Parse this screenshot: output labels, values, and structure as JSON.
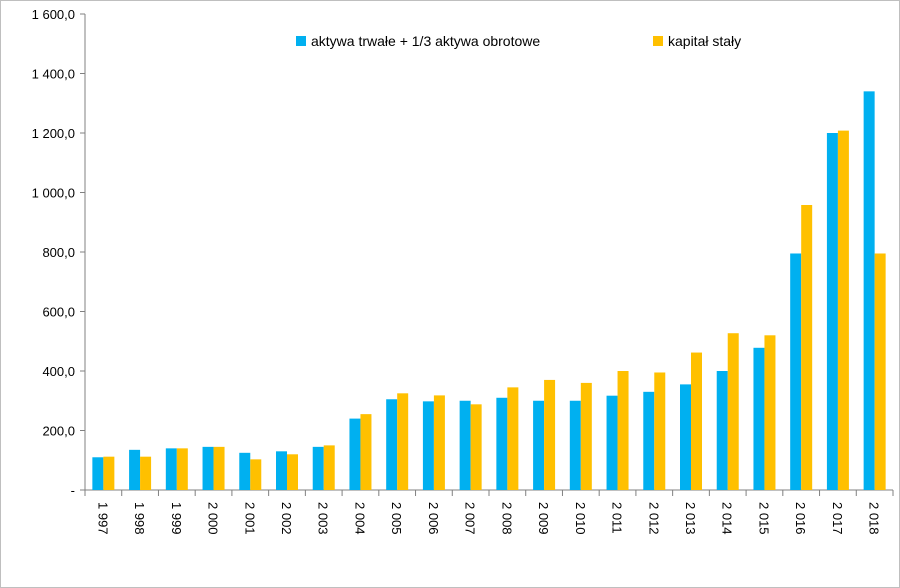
{
  "chart_data": {
    "type": "bar",
    "categories": [
      "1 997",
      "1 998",
      "1 999",
      "2 000",
      "2 001",
      "2 002",
      "2 003",
      "2 004",
      "2 005",
      "2 006",
      "2 007",
      "2 008",
      "2 009",
      "2 010",
      "2 011",
      "2 012",
      "2 013",
      "2 014",
      "2 015",
      "2 016",
      "2 017",
      "2 018"
    ],
    "series": [
      {
        "name": "aktywa trwałe + 1/3 aktywa obrotowe",
        "color": "#00B0F0",
        "values": [
          110,
          135,
          140,
          145,
          125,
          130,
          145,
          240,
          305,
          298,
          300,
          310,
          300,
          300,
          317,
          330,
          355,
          400,
          478,
          795,
          1200,
          1340
        ]
      },
      {
        "name": "kapitał stały",
        "color": "#FFC000",
        "values": [
          112,
          112,
          140,
          145,
          103,
          120,
          150,
          255,
          325,
          318,
          288,
          345,
          370,
          360,
          400,
          395,
          462,
          527,
          520,
          958,
          1208,
          795
        ]
      }
    ],
    "y_ticks": [
      "-",
      "200,0",
      "400,0",
      "600,0",
      "800,0",
      "1 000,0",
      "1 200,0",
      "1 400,0",
      "1 600,0"
    ],
    "ylim": [
      0,
      1600
    ],
    "y_step": 200,
    "grid": false,
    "legend_position": "top-right",
    "title": "",
    "xlabel": "",
    "ylabel": ""
  }
}
